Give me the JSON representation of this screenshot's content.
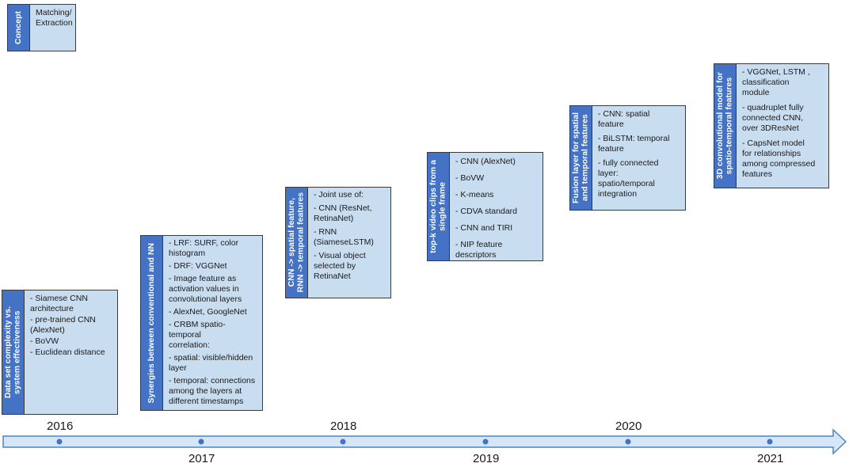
{
  "years": [
    {
      "label": "2016",
      "position": "above"
    },
    {
      "label": "2017",
      "position": "below"
    },
    {
      "label": "2018",
      "position": "above"
    },
    {
      "label": "2019",
      "position": "below"
    },
    {
      "label": "2020",
      "position": "above"
    },
    {
      "label": "2021",
      "position": "below"
    }
  ],
  "cards": [
    {
      "label": "Concept",
      "items": [
        "Matching/\nExtraction"
      ]
    },
    {
      "label": "Data set complexity vs.\nsystem effectiveness",
      "items": [
        "- Siamese CNN\narchitecture",
        "- pre-trained CNN\n(AlexNet)",
        "- BoVW",
        "- Euclidean distance"
      ]
    },
    {
      "label": "Synergies between conventional and NN",
      "items": [
        "- LRF: SURF, color\nhistogram",
        "- DRF: VGGNet",
        "- Image feature as\nactivation values in\nconvolutional layers",
        "- AlexNet, GoogleNet",
        "- CRBM spatio-temporal\ncorrelation:",
        "- spatial: visible/hidden\nlayer",
        "- temporal: connections\namong the layers at\ndifferent timestamps"
      ]
    },
    {
      "label": "CNN -> spatial feature,\nRNN -> temporal features",
      "items": [
        "- Joint use of:",
        "   - CNN (ResNet,\n   RetinaNet)",
        "   - RNN\n   (SiameseLSTM)",
        "- Visual object\nselected by\nRetinaNet"
      ]
    },
    {
      "label": "top-k video clips from a\nsingle frame",
      "items": [
        "- CNN (AlexNet)",
        "- BoVW",
        "- K-means",
        "- CDVA standard",
        "- CNN and TIRI",
        "- NIP feature\ndescriptors"
      ]
    },
    {
      "label": "Fusion layer for spatial\nand temporal features",
      "items": [
        "- CNN: spatial\nfeature",
        "- BiLSTM: temporal\nfeature",
        "- fully connected\nlayer:\nspatio/temporal\nintegration"
      ]
    },
    {
      "label": "3D convolutional model for\nspatio-temporal features",
      "items": [
        "- VGGNet, LSTM ,\nclassification\nmodule",
        "- quadruplet fully\nconnected CNN,\nover 3DResNet",
        "- CapsNet  model\nfor relationships\namong compressed\nfeatures"
      ]
    }
  ]
}
